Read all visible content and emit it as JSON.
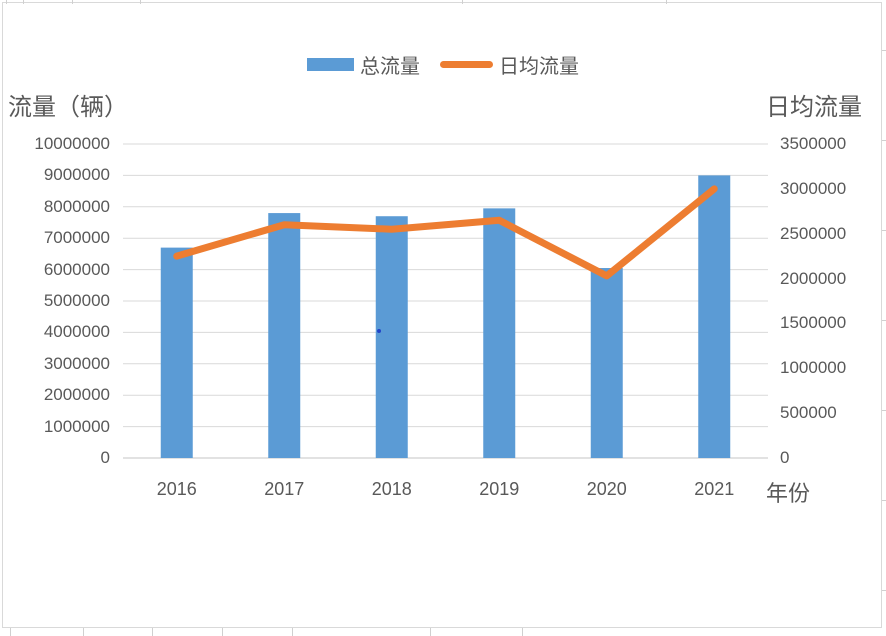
{
  "chart_data": {
    "type": "bar",
    "categories": [
      "2016",
      "2017",
      "2018",
      "2019",
      "2020",
      "2021"
    ],
    "series": [
      {
        "name": "总流量",
        "type": "bar",
        "axis": "left",
        "color": "#5B9BD5",
        "values": [
          6700000,
          7800000,
          7700000,
          7950000,
          6050000,
          9000000
        ]
      },
      {
        "name": "日均流量",
        "type": "line",
        "axis": "right",
        "color": "#ED7D31",
        "values": [
          2250000,
          2600000,
          2550000,
          2650000,
          2030000,
          3000000
        ]
      }
    ],
    "left_axis": {
      "title": "流量（辆）",
      "min": 0,
      "max": 10000000,
      "step": 1000000,
      "tick_labels": [
        "10000000",
        "9000000",
        "8000000",
        "7000000",
        "6000000",
        "5000000",
        "4000000",
        "3000000",
        "2000000",
        "1000000",
        "0"
      ]
    },
    "right_axis": {
      "title": "日均流量",
      "min": 0,
      "max": 3500000,
      "step": 500000,
      "tick_labels": [
        "3500000",
        "3000000",
        "2500000",
        "2000000",
        "1500000",
        "1000000",
        "500000",
        "0"
      ]
    },
    "x_axis": {
      "title": "年份",
      "tick_labels": [
        "2016",
        "2017",
        "2018",
        "2019",
        "2020",
        "2021"
      ]
    },
    "grid": true,
    "legend_position": "top",
    "colors": {
      "gridline": "#D9D9D9",
      "axis_line": "#C6C6C6",
      "text": "#595959"
    }
  }
}
